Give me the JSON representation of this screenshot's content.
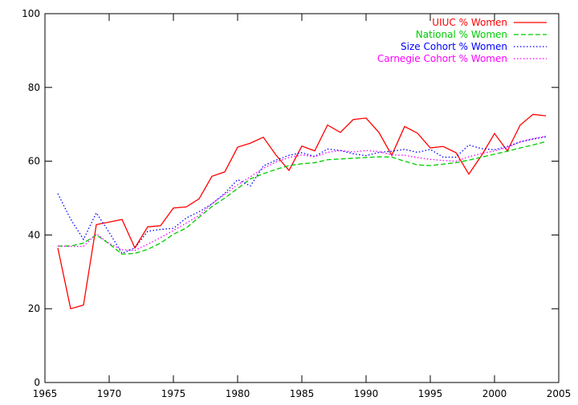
{
  "chart_data": {
    "type": "line",
    "title": "",
    "xlabel": "",
    "ylabel": "",
    "xlim": [
      1965,
      2005
    ],
    "ylim": [
      0,
      100
    ],
    "x_ticks": [
      1965,
      1970,
      1975,
      1980,
      1985,
      1990,
      1995,
      2000,
      2005
    ],
    "y_ticks": [
      0,
      20,
      40,
      60,
      80,
      100
    ],
    "grid": false,
    "legend_position": "top-right",
    "series": [
      {
        "name": "UIUC % Women",
        "color": "#ff0000",
        "dash": "solid",
        "x": [
          1966,
          1967,
          1968,
          1969,
          1970,
          1971,
          1972,
          1973,
          1974,
          1975,
          1976,
          1977,
          1978,
          1979,
          1980,
          1981,
          1982,
          1983,
          1984,
          1985,
          1986,
          1987,
          1988,
          1989,
          1990,
          1991,
          1992,
          1993,
          1994,
          1995,
          1996,
          1997,
          1998,
          1999,
          2000,
          2001,
          2002,
          2003,
          2004
        ],
        "values": [
          36.5,
          20,
          21,
          42.8,
          43.5,
          44.2,
          36.5,
          42.2,
          42.5,
          47.3,
          47.6,
          49.8,
          55.9,
          57.1,
          63.8,
          64.9,
          66.5,
          61.6,
          57.5,
          64.1,
          62.8,
          69.8,
          67.8,
          71.3,
          71.7,
          67.8,
          61.6,
          69.4,
          67.6,
          63.6,
          64.0,
          62.3,
          56.5,
          61.6,
          67.5,
          62.8,
          69.8,
          72.7,
          72.3
        ]
      },
      {
        "name": "National % Women",
        "color": "#00cc00",
        "dash": "dashed",
        "x": [
          1966,
          1967,
          1968,
          1969,
          1970,
          1971,
          1972,
          1973,
          1974,
          1975,
          1976,
          1977,
          1978,
          1979,
          1980,
          1981,
          1982,
          1983,
          1984,
          1985,
          1986,
          1987,
          1988,
          1989,
          1990,
          1991,
          1992,
          1993,
          1994,
          1995,
          1996,
          1997,
          1998,
          1999,
          2000,
          2001,
          2002,
          2003,
          2004
        ],
        "values": [
          37.0,
          37.0,
          37.8,
          40.0,
          37.6,
          34.8,
          35.0,
          36.1,
          37.8,
          40.2,
          41.9,
          44.8,
          47.7,
          50.0,
          52.6,
          55.2,
          56.6,
          57.8,
          58.8,
          59.3,
          59.6,
          60.4,
          60.6,
          60.8,
          61.0,
          61.2,
          61.1,
          60.0,
          59.0,
          58.8,
          59.2,
          59.6,
          60.3,
          61.1,
          61.9,
          62.7,
          63.6,
          64.4,
          65.3
        ]
      },
      {
        "name": "Size Cohort % Women",
        "color": "#0000ff",
        "dash": "dotted",
        "x": [
          1966,
          1967,
          1968,
          1969,
          1970,
          1971,
          1972,
          1973,
          1974,
          1975,
          1976,
          1977,
          1978,
          1979,
          1980,
          1981,
          1982,
          1983,
          1984,
          1985,
          1986,
          1987,
          1988,
          1989,
          1990,
          1991,
          1992,
          1993,
          1994,
          1995,
          1996,
          1997,
          1998,
          1999,
          2000,
          2001,
          2002,
          2003,
          2004
        ],
        "values": [
          51.2,
          44.3,
          38.8,
          46.0,
          40.7,
          35.0,
          36.5,
          41.0,
          41.5,
          41.8,
          44.6,
          46.3,
          48.4,
          51.3,
          55.0,
          53.3,
          58.7,
          60.3,
          61.6,
          62.3,
          61.3,
          63.3,
          62.9,
          62.0,
          61.5,
          62.4,
          62.7,
          63.2,
          62.4,
          63.2,
          61.1,
          61.1,
          64.4,
          63.4,
          63.1,
          64.0,
          65.2,
          66.0,
          66.6
        ]
      },
      {
        "name": "Carnegie Cohort % Women",
        "color": "#ff00ff",
        "dash": "dotted",
        "x": [
          1966,
          1967,
          1968,
          1969,
          1970,
          1971,
          1972,
          1973,
          1974,
          1975,
          1976,
          1977,
          1978,
          1979,
          1980,
          1981,
          1982,
          1983,
          1984,
          1985,
          1986,
          1987,
          1988,
          1989,
          1990,
          1991,
          1992,
          1993,
          1994,
          1995,
          1996,
          1997,
          1998,
          1999,
          2000,
          2001,
          2002,
          2003,
          2004
        ],
        "values": [
          37.0,
          36.9,
          36.9,
          40.3,
          37.7,
          36.0,
          35.8,
          37.5,
          39.3,
          41.2,
          43.2,
          45.3,
          48.5,
          51.0,
          53.6,
          55.8,
          58.1,
          59.8,
          61.0,
          61.7,
          61.2,
          62.4,
          62.9,
          62.5,
          62.9,
          62.6,
          61.7,
          61.6,
          61.0,
          60.5,
          60.2,
          60.0,
          61.2,
          62.1,
          62.8,
          63.7,
          65.3,
          66.1,
          66.8
        ]
      }
    ]
  }
}
